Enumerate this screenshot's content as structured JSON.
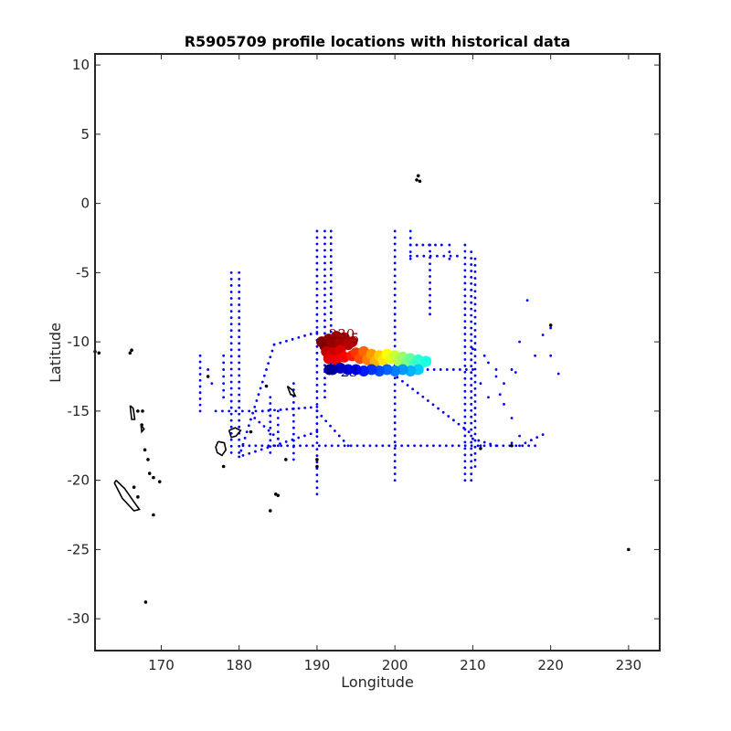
{
  "chart_data": {
    "type": "scatter",
    "title": "R5905709 profile locations with historical data",
    "xlabel": "Longitude",
    "ylabel": "Latitude",
    "xlim": [
      161.5,
      234
    ],
    "ylim": [
      -32.3,
      10.8
    ],
    "x_ticks": [
      170,
      180,
      190,
      200,
      210,
      220,
      230
    ],
    "y_ticks": [
      10,
      5,
      0,
      -5,
      -10,
      -15,
      -20,
      -25,
      -30
    ],
    "x_tick_labels": [
      "170",
      "180",
      "190",
      "200",
      "210",
      "220",
      "230"
    ],
    "y_tick_labels": [
      "10",
      "5",
      "0",
      "-5",
      "-10",
      "-15",
      "-20",
      "-25",
      "-30"
    ],
    "grid": false,
    "colors": {
      "historical": "#0000ff",
      "coastline": "#000000",
      "axes": "#262626"
    },
    "historical_lines": [
      {
        "from": [
          179,
          -5
        ],
        "to": [
          179,
          -18
        ]
      },
      {
        "from": [
          180,
          -5
        ],
        "to": [
          180,
          -18
        ]
      },
      {
        "from": [
          190,
          -2
        ],
        "to": [
          190,
          -21
        ]
      },
      {
        "from": [
          191,
          -2
        ],
        "to": [
          191,
          -14
        ]
      },
      {
        "from": [
          191.8,
          -2
        ],
        "to": [
          191.8,
          -12
        ]
      },
      {
        "from": [
          200,
          -2
        ],
        "to": [
          200,
          -20
        ]
      },
      {
        "from": [
          202,
          -2
        ],
        "to": [
          202,
          -4
        ]
      },
      {
        "from": [
          202,
          -3
        ],
        "to": [
          206,
          -3
        ]
      },
      {
        "from": [
          202,
          -3.8
        ],
        "to": [
          208,
          -3.8
        ]
      },
      {
        "from": [
          204.5,
          -3
        ],
        "to": [
          204.5,
          -8
        ]
      },
      {
        "from": [
          207,
          -3
        ],
        "to": [
          207,
          -4
        ]
      },
      {
        "from": [
          209,
          -3
        ],
        "to": [
          209,
          -20
        ]
      },
      {
        "from": [
          209.8,
          -3.5
        ],
        "to": [
          209.8,
          -20
        ]
      },
      {
        "from": [
          210.3,
          -4
        ],
        "to": [
          210.3,
          -19
        ]
      },
      {
        "from": [
          180,
          -18.3
        ],
        "to": [
          184.5,
          -10.2
        ]
      },
      {
        "from": [
          184.5,
          -10.2
        ],
        "to": [
          190,
          -9.3
        ]
      },
      {
        "from": [
          180.5,
          -17.5
        ],
        "to": [
          218,
          -17.5
        ]
      },
      {
        "from": [
          180.5,
          -18.2
        ],
        "to": [
          190,
          -16.5
        ]
      },
      {
        "from": [
          199,
          -12
        ],
        "to": [
          209.5,
          -16.5
        ]
      },
      {
        "from": [
          191,
          -12
        ],
        "to": [
          210,
          -12
        ]
      },
      {
        "from": [
          177,
          -15
        ],
        "to": [
          183,
          -15
        ]
      },
      {
        "from": [
          183,
          -15
        ],
        "to": [
          190,
          -14.7
        ]
      },
      {
        "from": [
          190,
          -15
        ],
        "to": [
          194,
          -17.5
        ]
      },
      {
        "from": [
          210,
          -17
        ],
        "to": [
          213,
          -17.5
        ]
      },
      {
        "from": [
          184,
          -14
        ],
        "to": [
          184,
          -18
        ]
      },
      {
        "from": [
          185,
          -15
        ],
        "to": [
          185,
          -17.5
        ]
      },
      {
        "from": [
          187,
          -13
        ],
        "to": [
          187,
          -18.5
        ]
      },
      {
        "from": [
          182,
          -15.5
        ],
        "to": [
          185,
          -17
        ]
      },
      {
        "from": [
          175,
          -11
        ],
        "to": [
          175,
          -15
        ]
      },
      {
        "from": [
          178,
          -11
        ],
        "to": [
          178,
          -14
        ]
      },
      {
        "from": [
          216,
          -17.5
        ],
        "to": [
          219,
          -16.7
        ]
      }
    ],
    "historical_points": [
      [
        210,
        -10.5
      ],
      [
        212,
        -11.5
      ],
      [
        213,
        -12.5
      ],
      [
        214,
        -13
      ],
      [
        214,
        -14.5
      ],
      [
        215,
        -15.5
      ],
      [
        216,
        -16.8
      ],
      [
        217,
        -7
      ],
      [
        218,
        -11
      ],
      [
        219,
        -9.5
      ],
      [
        220,
        -11
      ],
      [
        220,
        -9
      ],
      [
        221,
        -12.3
      ],
      [
        216,
        -10
      ],
      [
        213,
        -12
      ],
      [
        211,
        -13
      ],
      [
        212,
        -14
      ],
      [
        215,
        -12
      ],
      [
        215.5,
        -12.2
      ],
      [
        211,
        -17.5
      ],
      [
        215,
        -17.3
      ],
      [
        213.5,
        -13.8
      ],
      [
        211.5,
        -11
      ],
      [
        176,
        -12
      ],
      [
        176.5,
        -13
      ]
    ],
    "coastlines": [
      [
        [
          164.2,
          -20.0
        ],
        [
          165.3,
          -20.6
        ],
        [
          166.8,
          -21.8
        ],
        [
          167.2,
          -22.1
        ],
        [
          166.5,
          -22.2
        ],
        [
          165.0,
          -21.3
        ],
        [
          164.0,
          -20.2
        ],
        [
          164.2,
          -20.0
        ]
      ],
      [
        [
          177.3,
          -17.2
        ],
        [
          178.1,
          -17.3
        ],
        [
          178.3,
          -17.8
        ],
        [
          177.8,
          -18.2
        ],
        [
          177.2,
          -18.0
        ],
        [
          177.0,
          -17.6
        ],
        [
          177.3,
          -17.2
        ]
      ],
      [
        [
          178.7,
          -16.4
        ],
        [
          179.5,
          -16.2
        ],
        [
          180.2,
          -16.4
        ],
        [
          179.6,
          -16.8
        ],
        [
          179.0,
          -16.9
        ],
        [
          178.7,
          -16.4
        ]
      ],
      [
        [
          186.2,
          -13.2
        ],
        [
          186.9,
          -13.5
        ],
        [
          187.2,
          -13.9
        ],
        [
          186.6,
          -13.8
        ],
        [
          186.2,
          -13.2
        ]
      ],
      [
        [
          166.0,
          -14.6
        ],
        [
          166.4,
          -14.8
        ],
        [
          166.6,
          -15.6
        ],
        [
          166.2,
          -15.6
        ],
        [
          166.0,
          -14.6
        ]
      ],
      [
        [
          167.4,
          -16.0
        ],
        [
          167.8,
          -16.3
        ],
        [
          167.5,
          -16.5
        ],
        [
          167.4,
          -16.0
        ]
      ]
    ],
    "coast_dots": [
      [
        161.5,
        -10.7
      ],
      [
        162.0,
        -10.8
      ],
      [
        166.0,
        -10.8
      ],
      [
        166.2,
        -10.6
      ],
      [
        167.0,
        -15.0
      ],
      [
        167.6,
        -15.0
      ],
      [
        167.5,
        -16.0
      ],
      [
        167.9,
        -17.8
      ],
      [
        168.3,
        -18.5
      ],
      [
        168.5,
        -19.5
      ],
      [
        169.0,
        -19.8
      ],
      [
        169.8,
        -20.1
      ],
      [
        166.5,
        -20.5
      ],
      [
        167.0,
        -21.2
      ],
      [
        169.0,
        -22.5
      ],
      [
        168.0,
        -28.8
      ],
      [
        184.0,
        -22.2
      ],
      [
        184.7,
        -21.0
      ],
      [
        185.0,
        -21.1
      ],
      [
        186.0,
        -18.5
      ],
      [
        178.0,
        -19.0
      ],
      [
        181.5,
        -16.5
      ],
      [
        183.5,
        -13.2
      ],
      [
        190.0,
        -18.5
      ],
      [
        190.0,
        -19.0
      ],
      [
        203.0,
        2.0
      ],
      [
        203.2,
        1.6
      ],
      [
        202.8,
        1.7
      ],
      [
        220.0,
        -8.8
      ],
      [
        230.0,
        -25.0
      ],
      [
        211.0,
        -17.7
      ],
      [
        215.0,
        -17.5
      ],
      [
        176.0,
        -12.5
      ]
    ],
    "current_profiles": [
      {
        "lon": 190.6,
        "lat": -10.0,
        "color": "#800000"
      },
      {
        "lon": 191.0,
        "lat": -10.3,
        "color": "#800000"
      },
      {
        "lon": 191.5,
        "lat": -9.8,
        "color": "#8c0000"
      },
      {
        "lon": 192.0,
        "lat": -10.1,
        "color": "#990000"
      },
      {
        "lon": 192.5,
        "lat": -9.6,
        "color": "#990000"
      },
      {
        "lon": 193.0,
        "lat": -10.0,
        "color": "#a60000"
      },
      {
        "lon": 193.5,
        "lat": -9.7,
        "color": "#a60000"
      },
      {
        "lon": 194.0,
        "lat": -10.2,
        "color": "#b30000"
      },
      {
        "lon": 194.5,
        "lat": -10.0,
        "color": "#b30000"
      },
      {
        "lon": 191.2,
        "lat": -10.7,
        "color": "#bf0000"
      },
      {
        "lon": 192.0,
        "lat": -10.8,
        "color": "#cc0000"
      },
      {
        "lon": 193.0,
        "lat": -10.6,
        "color": "#d90000"
      },
      {
        "lon": 191.5,
        "lat": -11.2,
        "color": "#e60000"
      },
      {
        "lon": 192.5,
        "lat": -11.3,
        "color": "#f20000"
      },
      {
        "lon": 193.5,
        "lat": -11.1,
        "color": "#ff0000"
      },
      {
        "lon": 194.5,
        "lat": -11.0,
        "color": "#ff1a00"
      },
      {
        "lon": 195.0,
        "lat": -10.8,
        "color": "#ff3300"
      },
      {
        "lon": 195.5,
        "lat": -11.2,
        "color": "#ff4d00"
      },
      {
        "lon": 196.0,
        "lat": -10.7,
        "color": "#ff6600"
      },
      {
        "lon": 196.5,
        "lat": -11.3,
        "color": "#ff8000"
      },
      {
        "lon": 197.0,
        "lat": -10.9,
        "color": "#ff9900"
      },
      {
        "lon": 197.5,
        "lat": -11.4,
        "color": "#ffb300"
      },
      {
        "lon": 198.0,
        "lat": -11.0,
        "color": "#ffcc00"
      },
      {
        "lon": 198.5,
        "lat": -11.3,
        "color": "#ffe600"
      },
      {
        "lon": 199.0,
        "lat": -10.9,
        "color": "#ffff00"
      },
      {
        "lon": 199.5,
        "lat": -11.2,
        "color": "#e6ff1a"
      },
      {
        "lon": 200.0,
        "lat": -11.0,
        "color": "#ccff33"
      },
      {
        "lon": 200.5,
        "lat": -11.4,
        "color": "#b3ff4d"
      },
      {
        "lon": 201.0,
        "lat": -11.1,
        "color": "#99ff66"
      },
      {
        "lon": 201.5,
        "lat": -11.5,
        "color": "#80ff80"
      },
      {
        "lon": 202.0,
        "lat": -11.2,
        "color": "#66ff99"
      },
      {
        "lon": 202.5,
        "lat": -11.6,
        "color": "#4dffb3"
      },
      {
        "lon": 203.0,
        "lat": -11.3,
        "color": "#33ffcc"
      },
      {
        "lon": 203.5,
        "lat": -11.5,
        "color": "#33ffcc"
      },
      {
        "lon": 204.0,
        "lat": -11.4,
        "color": "#1affe6"
      },
      {
        "lon": 203.0,
        "lat": -12.0,
        "color": "#00ccff"
      },
      {
        "lon": 202.0,
        "lat": -12.1,
        "color": "#00b3ff"
      },
      {
        "lon": 201.0,
        "lat": -12.0,
        "color": "#0099ff"
      },
      {
        "lon": 200.0,
        "lat": -12.1,
        "color": "#0080ff"
      },
      {
        "lon": 199.0,
        "lat": -12.0,
        "color": "#0066ff"
      },
      {
        "lon": 198.0,
        "lat": -12.1,
        "color": "#004dff"
      },
      {
        "lon": 197.0,
        "lat": -12.0,
        "color": "#0033ff"
      },
      {
        "lon": 196.0,
        "lat": -12.1,
        "color": "#001aff"
      },
      {
        "lon": 195.0,
        "lat": -12.0,
        "color": "#0000ff"
      },
      {
        "lon": 194.0,
        "lat": -12.0,
        "color": "#0000e6"
      },
      {
        "lon": 193.0,
        "lat": -11.9,
        "color": "#0000cc"
      },
      {
        "lon": 192.0,
        "lat": -12.0,
        "color": "#0000a6"
      },
      {
        "lon": 191.6,
        "lat": -12.0,
        "color": "#000099"
      }
    ],
    "profile_number_labels": [
      {
        "text": "230",
        "lon": 191.5,
        "lat": -9.8,
        "color": "#800000"
      },
      {
        "text": "5",
        "lon": 194.3,
        "lat": -10.1,
        "color": "#800000"
      },
      {
        "text": "23",
        "lon": 193.0,
        "lat": -12.5,
        "color": "#000080"
      }
    ]
  }
}
